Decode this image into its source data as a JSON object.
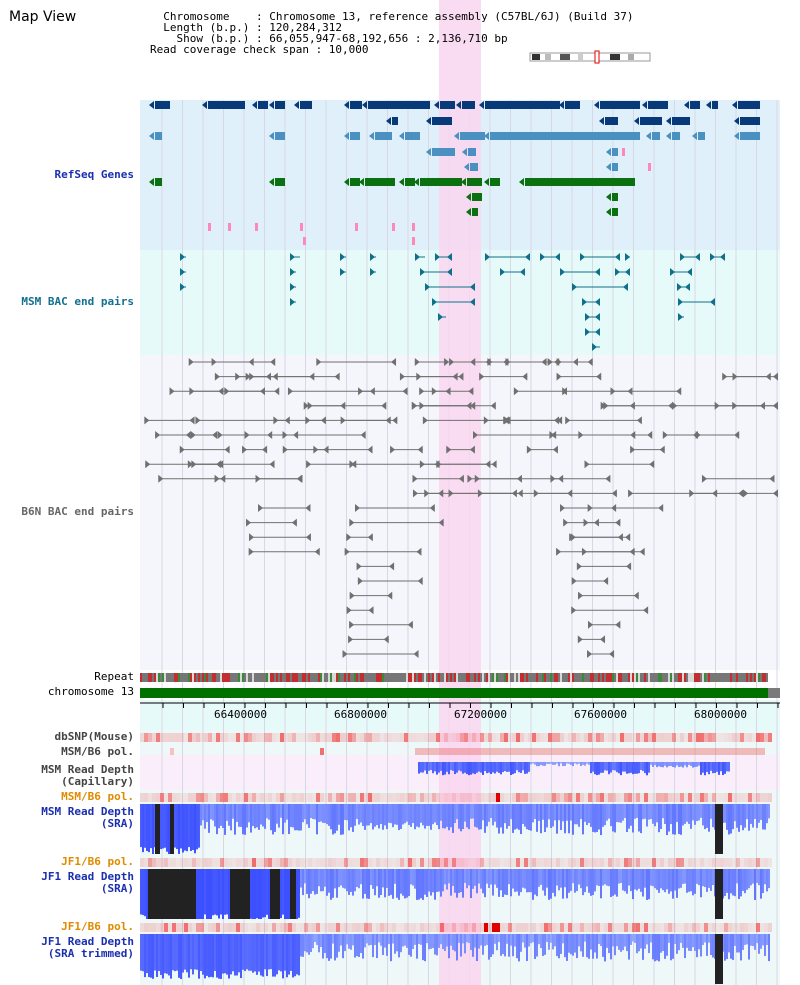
{
  "title": "Map View",
  "info": {
    "line1": "  Chromosome    : Chromosome 13, reference assembly (C57BL/6J) (Build 37)",
    "line2": "  Length (b.p.) : 120,284,312",
    "line3": "    Show (b.p.) : 66,055,947-68,192,656 : 2,136,710 bp",
    "line4": "Read coverage check span : 10,000"
  },
  "tracks": {
    "refseq": "RefSeq Genes",
    "msm_bac": "MSM BAC end pairs",
    "b6n_bac": "B6N BAC end pairs",
    "repeat": "Repeat",
    "chromosome": "chromosome 13",
    "dbsnp": "dbSNP(Mouse)",
    "msm_b6_pol_1": "MSM/B6 pol.",
    "msm_read_cap_1": "MSM Read Depth",
    "msm_read_cap_2": "(Capillary)",
    "msm_b6_pol_2": "MSM/B6 pol.",
    "msm_read_sra_1": "MSM Read Depth",
    "msm_read_sra_2": "(SRA)",
    "jf1_b6_pol_1": "JF1/B6 pol.",
    "jf1_read_sra_1": "JF1 Read Depth",
    "jf1_read_sra_2": "(SRA)",
    "jf1_b6_pol_2": "JF1/B6 pol.",
    "jf1_read_trim_1": "JF1 Read Depth",
    "jf1_read_trim_2": "(SRA trimmed)"
  },
  "axis": {
    "ticks": [
      "66400000",
      "66800000",
      "67200000",
      "67600000",
      "68000000"
    ]
  },
  "colors": {
    "refseq_bg": "#dff0fa",
    "msm_bg": "#e6fafa",
    "b6n_bg": "#f5f5fc",
    "highlight": "#f9d6f0",
    "gene_dark": "#083a7a",
    "gene_mid": "#4a90c0",
    "gene_green": "#0a7010",
    "gene_pink": "#ff88bb",
    "bac_msm": "#10708a",
    "bac_b6n": "#707070",
    "depth_blue": "#3030ff",
    "depth_black": "#222222",
    "chrom_green": "#007000"
  }
}
